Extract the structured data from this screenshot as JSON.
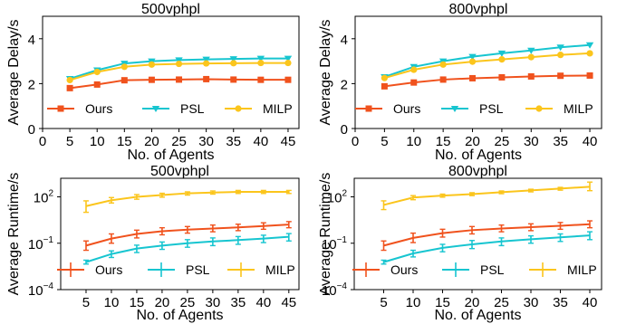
{
  "chart_data": [
    {
      "type": "line",
      "title": "500vphpl",
      "xlabel": "No. of Agents",
      "ylabel": "Average Delay/s",
      "x": [
        5,
        10,
        15,
        20,
        25,
        30,
        35,
        40,
        45
      ],
      "xticks": [
        "0",
        "5",
        "10",
        "15",
        "20",
        "25",
        "30",
        "35",
        "40",
        "45"
      ],
      "xtick_values": [
        0,
        5,
        10,
        15,
        20,
        25,
        30,
        35,
        40,
        45
      ],
      "xlim": [
        0,
        47
      ],
      "yticks": [
        "0",
        "2",
        "4"
      ],
      "ytick_values": [
        0,
        2,
        4
      ],
      "ylim": [
        0,
        5
      ],
      "log_y": false,
      "error_bars": false,
      "legend_position": "bottom",
      "series": [
        {
          "name": "Ours",
          "color": "#f0521d",
          "marker": "square",
          "values": [
            1.8,
            1.96,
            2.15,
            2.17,
            2.18,
            2.2,
            2.18,
            2.17,
            2.17
          ]
        },
        {
          "name": "PSL",
          "color": "#17c5d0",
          "marker": "triangle-down",
          "values": [
            2.22,
            2.6,
            2.9,
            3.0,
            3.05,
            3.08,
            3.1,
            3.12,
            3.12
          ]
        },
        {
          "name": "MILP",
          "color": "#fbc51c",
          "marker": "circle",
          "values": [
            2.16,
            2.52,
            2.75,
            2.85,
            2.88,
            2.9,
            2.91,
            2.92,
            2.92
          ]
        }
      ]
    },
    {
      "type": "line",
      "title": "800vphpl",
      "xlabel": "No. of Agents",
      "ylabel": "Average Delay/s",
      "x": [
        5,
        10,
        15,
        20,
        25,
        30,
        35,
        40
      ],
      "xticks": [
        "0",
        "5",
        "10",
        "15",
        "20",
        "25",
        "30",
        "35",
        "40"
      ],
      "xtick_values": [
        0,
        5,
        10,
        15,
        20,
        25,
        30,
        35,
        40
      ],
      "xlim": [
        0,
        42
      ],
      "yticks": [
        "0",
        "2",
        "4"
      ],
      "ytick_values": [
        0,
        2,
        4
      ],
      "ylim": [
        0,
        5
      ],
      "log_y": false,
      "error_bars": false,
      "legend_position": "bottom",
      "series": [
        {
          "name": "Ours",
          "color": "#f0521d",
          "marker": "square",
          "values": [
            1.88,
            2.05,
            2.18,
            2.24,
            2.28,
            2.32,
            2.35,
            2.36
          ]
        },
        {
          "name": "PSL",
          "color": "#17c5d0",
          "marker": "triangle-down",
          "values": [
            2.3,
            2.75,
            3.0,
            3.2,
            3.35,
            3.48,
            3.62,
            3.72
          ]
        },
        {
          "name": "MILP",
          "color": "#fbc51c",
          "marker": "circle",
          "values": [
            2.25,
            2.62,
            2.85,
            2.98,
            3.08,
            3.18,
            3.28,
            3.35
          ]
        }
      ]
    },
    {
      "type": "line",
      "title": "500vphpl",
      "xlabel": "No. of Agents",
      "ylabel": "Average Runtime/s",
      "x": [
        5,
        10,
        15,
        20,
        25,
        30,
        35,
        40,
        45
      ],
      "xticks": [
        "5",
        "10",
        "15",
        "20",
        "25",
        "30",
        "35",
        "40",
        "45"
      ],
      "xtick_values": [
        5,
        10,
        15,
        20,
        25,
        30,
        35,
        40,
        45
      ],
      "xlim": [
        0,
        47
      ],
      "ylim_log10": [
        -4,
        3.2
      ],
      "yticks": [
        {
          "value": 100,
          "base": "10",
          "exp": "2"
        },
        {
          "value": 0.1,
          "base": "10",
          "exp": "−1"
        },
        {
          "value": 0.0001,
          "base": "10",
          "exp": "−4"
        }
      ],
      "log_y": true,
      "error_bars": true,
      "legend_position": "bottom",
      "series": [
        {
          "name": "Ours",
          "color": "#f0521d",
          "values": [
            0.07,
            0.2,
            0.4,
            0.6,
            0.75,
            0.9,
            1.05,
            1.3,
            1.6
          ],
          "lower": [
            0.035,
            0.1,
            0.22,
            0.35,
            0.45,
            0.55,
            0.65,
            0.8,
            1.0
          ],
          "upper": [
            0.14,
            0.4,
            0.7,
            1.0,
            1.2,
            1.5,
            1.7,
            2.1,
            2.5
          ]
        },
        {
          "name": "PSL",
          "color": "#17c5d0",
          "values": [
            0.006,
            0.02,
            0.045,
            0.07,
            0.1,
            0.13,
            0.16,
            0.2,
            0.26
          ],
          "lower": [
            0.0045,
            0.012,
            0.025,
            0.04,
            0.055,
            0.07,
            0.085,
            0.11,
            0.14
          ],
          "upper": [
            0.008,
            0.032,
            0.075,
            0.12,
            0.17,
            0.22,
            0.27,
            0.33,
            0.42
          ]
        },
        {
          "name": "MILP",
          "color": "#fbc51c",
          "values": [
            25,
            60,
            100,
            130,
            170,
            190,
            210,
            210,
            210
          ],
          "lower": [
            10,
            40,
            70,
            95,
            130,
            150,
            165,
            165,
            165
          ],
          "upper": [
            55,
            90,
            140,
            170,
            210,
            240,
            260,
            260,
            260
          ]
        }
      ]
    },
    {
      "type": "line",
      "title": "800vphpl",
      "xlabel": "No. of Agents",
      "ylabel": "Average Runtime/s",
      "x": [
        5,
        10,
        15,
        20,
        25,
        30,
        35,
        40
      ],
      "xticks": [
        "5",
        "10",
        "15",
        "20",
        "25",
        "30",
        "35",
        "40"
      ],
      "xtick_values": [
        5,
        10,
        15,
        20,
        25,
        30,
        35,
        40
      ],
      "xlim": [
        0,
        42
      ],
      "ylim_log10": [
        -4,
        3.2
      ],
      "yticks": [
        {
          "value": 100,
          "base": "10",
          "exp": "2"
        },
        {
          "value": 0.1,
          "base": "10",
          "exp": "−1"
        },
        {
          "value": 0.0001,
          "base": "10",
          "exp": "−4"
        }
      ],
      "log_y": true,
      "error_bars": true,
      "legend_position": "bottom",
      "series": [
        {
          "name": "Ours",
          "color": "#f0521d",
          "values": [
            0.07,
            0.22,
            0.45,
            0.7,
            0.9,
            1.1,
            1.35,
            1.7
          ],
          "lower": [
            0.035,
            0.11,
            0.25,
            0.4,
            0.55,
            0.65,
            0.8,
            1.0
          ],
          "upper": [
            0.14,
            0.45,
            0.8,
            1.2,
            1.5,
            1.8,
            2.2,
            2.8
          ]
        },
        {
          "name": "PSL",
          "color": "#17c5d0",
          "values": [
            0.006,
            0.022,
            0.05,
            0.085,
            0.13,
            0.18,
            0.24,
            0.32
          ],
          "lower": [
            0.0045,
            0.013,
            0.028,
            0.045,
            0.07,
            0.1,
            0.13,
            0.17
          ],
          "upper": [
            0.008,
            0.035,
            0.085,
            0.15,
            0.22,
            0.3,
            0.4,
            0.55
          ]
        },
        {
          "name": "MILP",
          "color": "#fbc51c",
          "values": [
            30,
            90,
            120,
            150,
            200,
            260,
            340,
            450
          ],
          "lower": [
            15,
            65,
            95,
            120,
            160,
            210,
            270,
            250
          ],
          "upper": [
            55,
            120,
            150,
            185,
            240,
            310,
            410,
            900
          ]
        }
      ]
    }
  ]
}
